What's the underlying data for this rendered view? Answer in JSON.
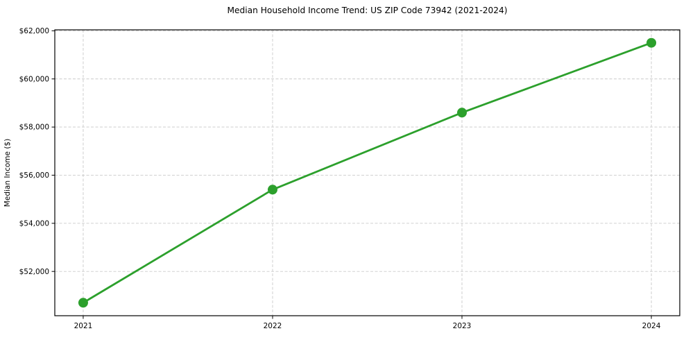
{
  "chart_data": {
    "type": "line",
    "title": "Median Household Income Trend: US ZIP Code 73942 (2021-2024)",
    "xlabel": "",
    "ylabel": "Median Income ($)",
    "x": [
      2021,
      2022,
      2023,
      2024
    ],
    "x_tick_labels": [
      "2021",
      "2022",
      "2023",
      "2024"
    ],
    "series": [
      {
        "name": "Median Household Income",
        "values": [
          50700,
          55400,
          58600,
          61500
        ]
      }
    ],
    "yticks": [
      52000,
      54000,
      56000,
      58000,
      60000,
      62000
    ],
    "y_tick_labels": [
      "$52,000",
      "$54,000",
      "$56,000",
      "$58,000",
      "$60,000",
      "$62,000"
    ],
    "xlim": [
      2020.85,
      2024.15
    ],
    "ylim": [
      50160,
      62040
    ],
    "grid": {
      "visible": true,
      "style": "dashed",
      "color": "#c9c9c9"
    },
    "legend": {
      "visible": false
    },
    "line_color": "#2ca02c",
    "line_width": 2.8,
    "marker": {
      "shape": "circle",
      "size": 7,
      "color": "#2ca02c"
    },
    "axes_color": "#000000",
    "text_color": "#000000",
    "background": "#ffffff"
  }
}
